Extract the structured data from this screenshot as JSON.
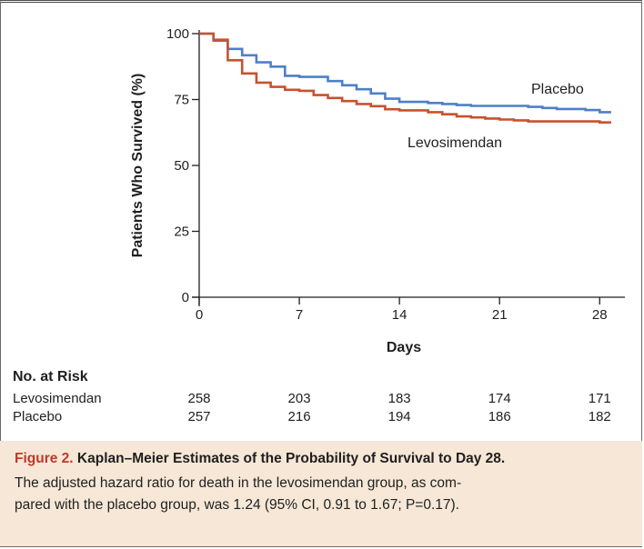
{
  "chart_data": {
    "type": "line",
    "title": "",
    "xlabel": "Days",
    "ylabel": "Patients Who Survived (%)",
    "xlim": [
      0,
      29
    ],
    "ylim": [
      0,
      100
    ],
    "xticks": [
      "0",
      "7",
      "14",
      "21",
      "28"
    ],
    "yticks": [
      "0",
      "25",
      "50",
      "75",
      "100"
    ],
    "series": [
      {
        "name": "Placebo",
        "color": "#4f7fc9",
        "step": true,
        "x": [
          0,
          1,
          2,
          3,
          4,
          5,
          6,
          7,
          8,
          9,
          10,
          11,
          12,
          13,
          14,
          15,
          16,
          17,
          18,
          19,
          20,
          21,
          22,
          23,
          24,
          25,
          26,
          27,
          28,
          28.8
        ],
        "y": [
          100,
          97.3,
          94.2,
          91.8,
          89.1,
          87.5,
          84.0,
          83.6,
          83.6,
          82.0,
          80.4,
          78.9,
          77.3,
          75.3,
          74.1,
          74.1,
          73.7,
          73.3,
          72.9,
          72.6,
          72.6,
          72.6,
          72.6,
          72.2,
          71.8,
          71.4,
          71.4,
          71.0,
          70.2,
          70.2
        ]
      },
      {
        "name": "Levosimendan",
        "color": "#c9512c",
        "step": true,
        "x": [
          0,
          1,
          2,
          3,
          4,
          5,
          6,
          7,
          8,
          9,
          10,
          11,
          12,
          13,
          14,
          15,
          16,
          17,
          18,
          19,
          20,
          21,
          22,
          23,
          24,
          25,
          26,
          27,
          28,
          28.8
        ],
        "y": [
          100,
          97.7,
          89.9,
          84.9,
          81.4,
          79.8,
          78.7,
          78.3,
          76.7,
          75.6,
          74.4,
          73.3,
          72.5,
          71.3,
          70.9,
          70.9,
          70.2,
          69.4,
          68.6,
          68.2,
          67.8,
          67.4,
          67.1,
          66.7,
          66.7,
          66.7,
          66.7,
          66.7,
          66.3,
          66.3
        ]
      }
    ],
    "annotations": [
      {
        "text": "Placebo",
        "series": "Placebo"
      },
      {
        "text": "Levosimendan",
        "series": "Levosimendan"
      }
    ]
  },
  "risk_table": {
    "title": "No. at Risk",
    "days": [
      0,
      7,
      14,
      21,
      28
    ],
    "rows": [
      {
        "name": "Levosimendan",
        "values": [
          "258",
          "203",
          "183",
          "174",
          "171"
        ]
      },
      {
        "name": "Placebo",
        "values": [
          "257",
          "216",
          "194",
          "186",
          "182"
        ]
      }
    ]
  },
  "caption": {
    "figure_number": "Figure 2.",
    "title": "Kaplan–Meier Estimates of the Probability of Survival to Day 28.",
    "body_line1": "The adjusted hazard ratio for death in the levosimendan group, as com-",
    "body_line2": "pared with the placebo group, was 1.24 (95% CI, 0.91 to 1.67; P=0.17).",
    "accent_color": "#c0392b",
    "background_color": "#f6e7d7"
  }
}
